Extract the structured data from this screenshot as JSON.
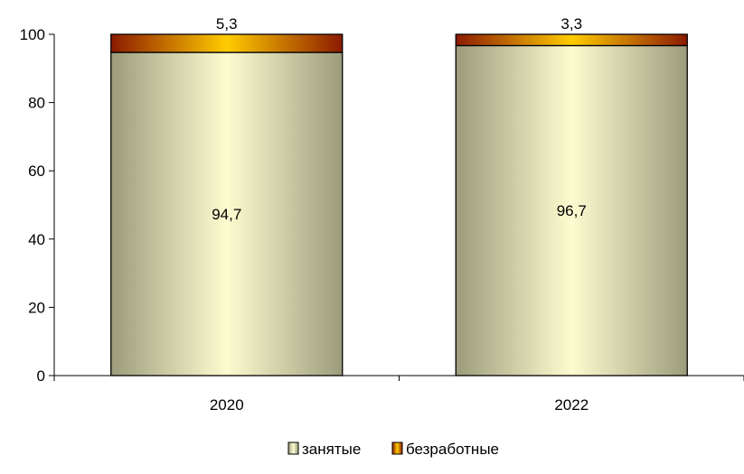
{
  "chart_data": {
    "type": "bar",
    "stacked": true,
    "categories": [
      "2020",
      "2022"
    ],
    "series": [
      {
        "name": "занятые",
        "values": [
          94.7,
          96.7
        ],
        "labels": [
          "94,7",
          "96,7"
        ],
        "color_light": "#fdfcd0",
        "color_dark": "#9c9c7c"
      },
      {
        "name": "безработные",
        "values": [
          5.3,
          3.3
        ],
        "labels": [
          "5,3",
          "3,3"
        ],
        "color_light": "#ffcc00",
        "color_dark": "#8b1a00"
      }
    ],
    "ylim": [
      0,
      100
    ],
    "yticks": [
      0,
      20,
      40,
      60,
      80,
      100
    ],
    "ytick_labels": [
      "0",
      "20",
      "40",
      "60",
      "80",
      "100"
    ],
    "grid": false,
    "legend_position": "bottom-center"
  }
}
